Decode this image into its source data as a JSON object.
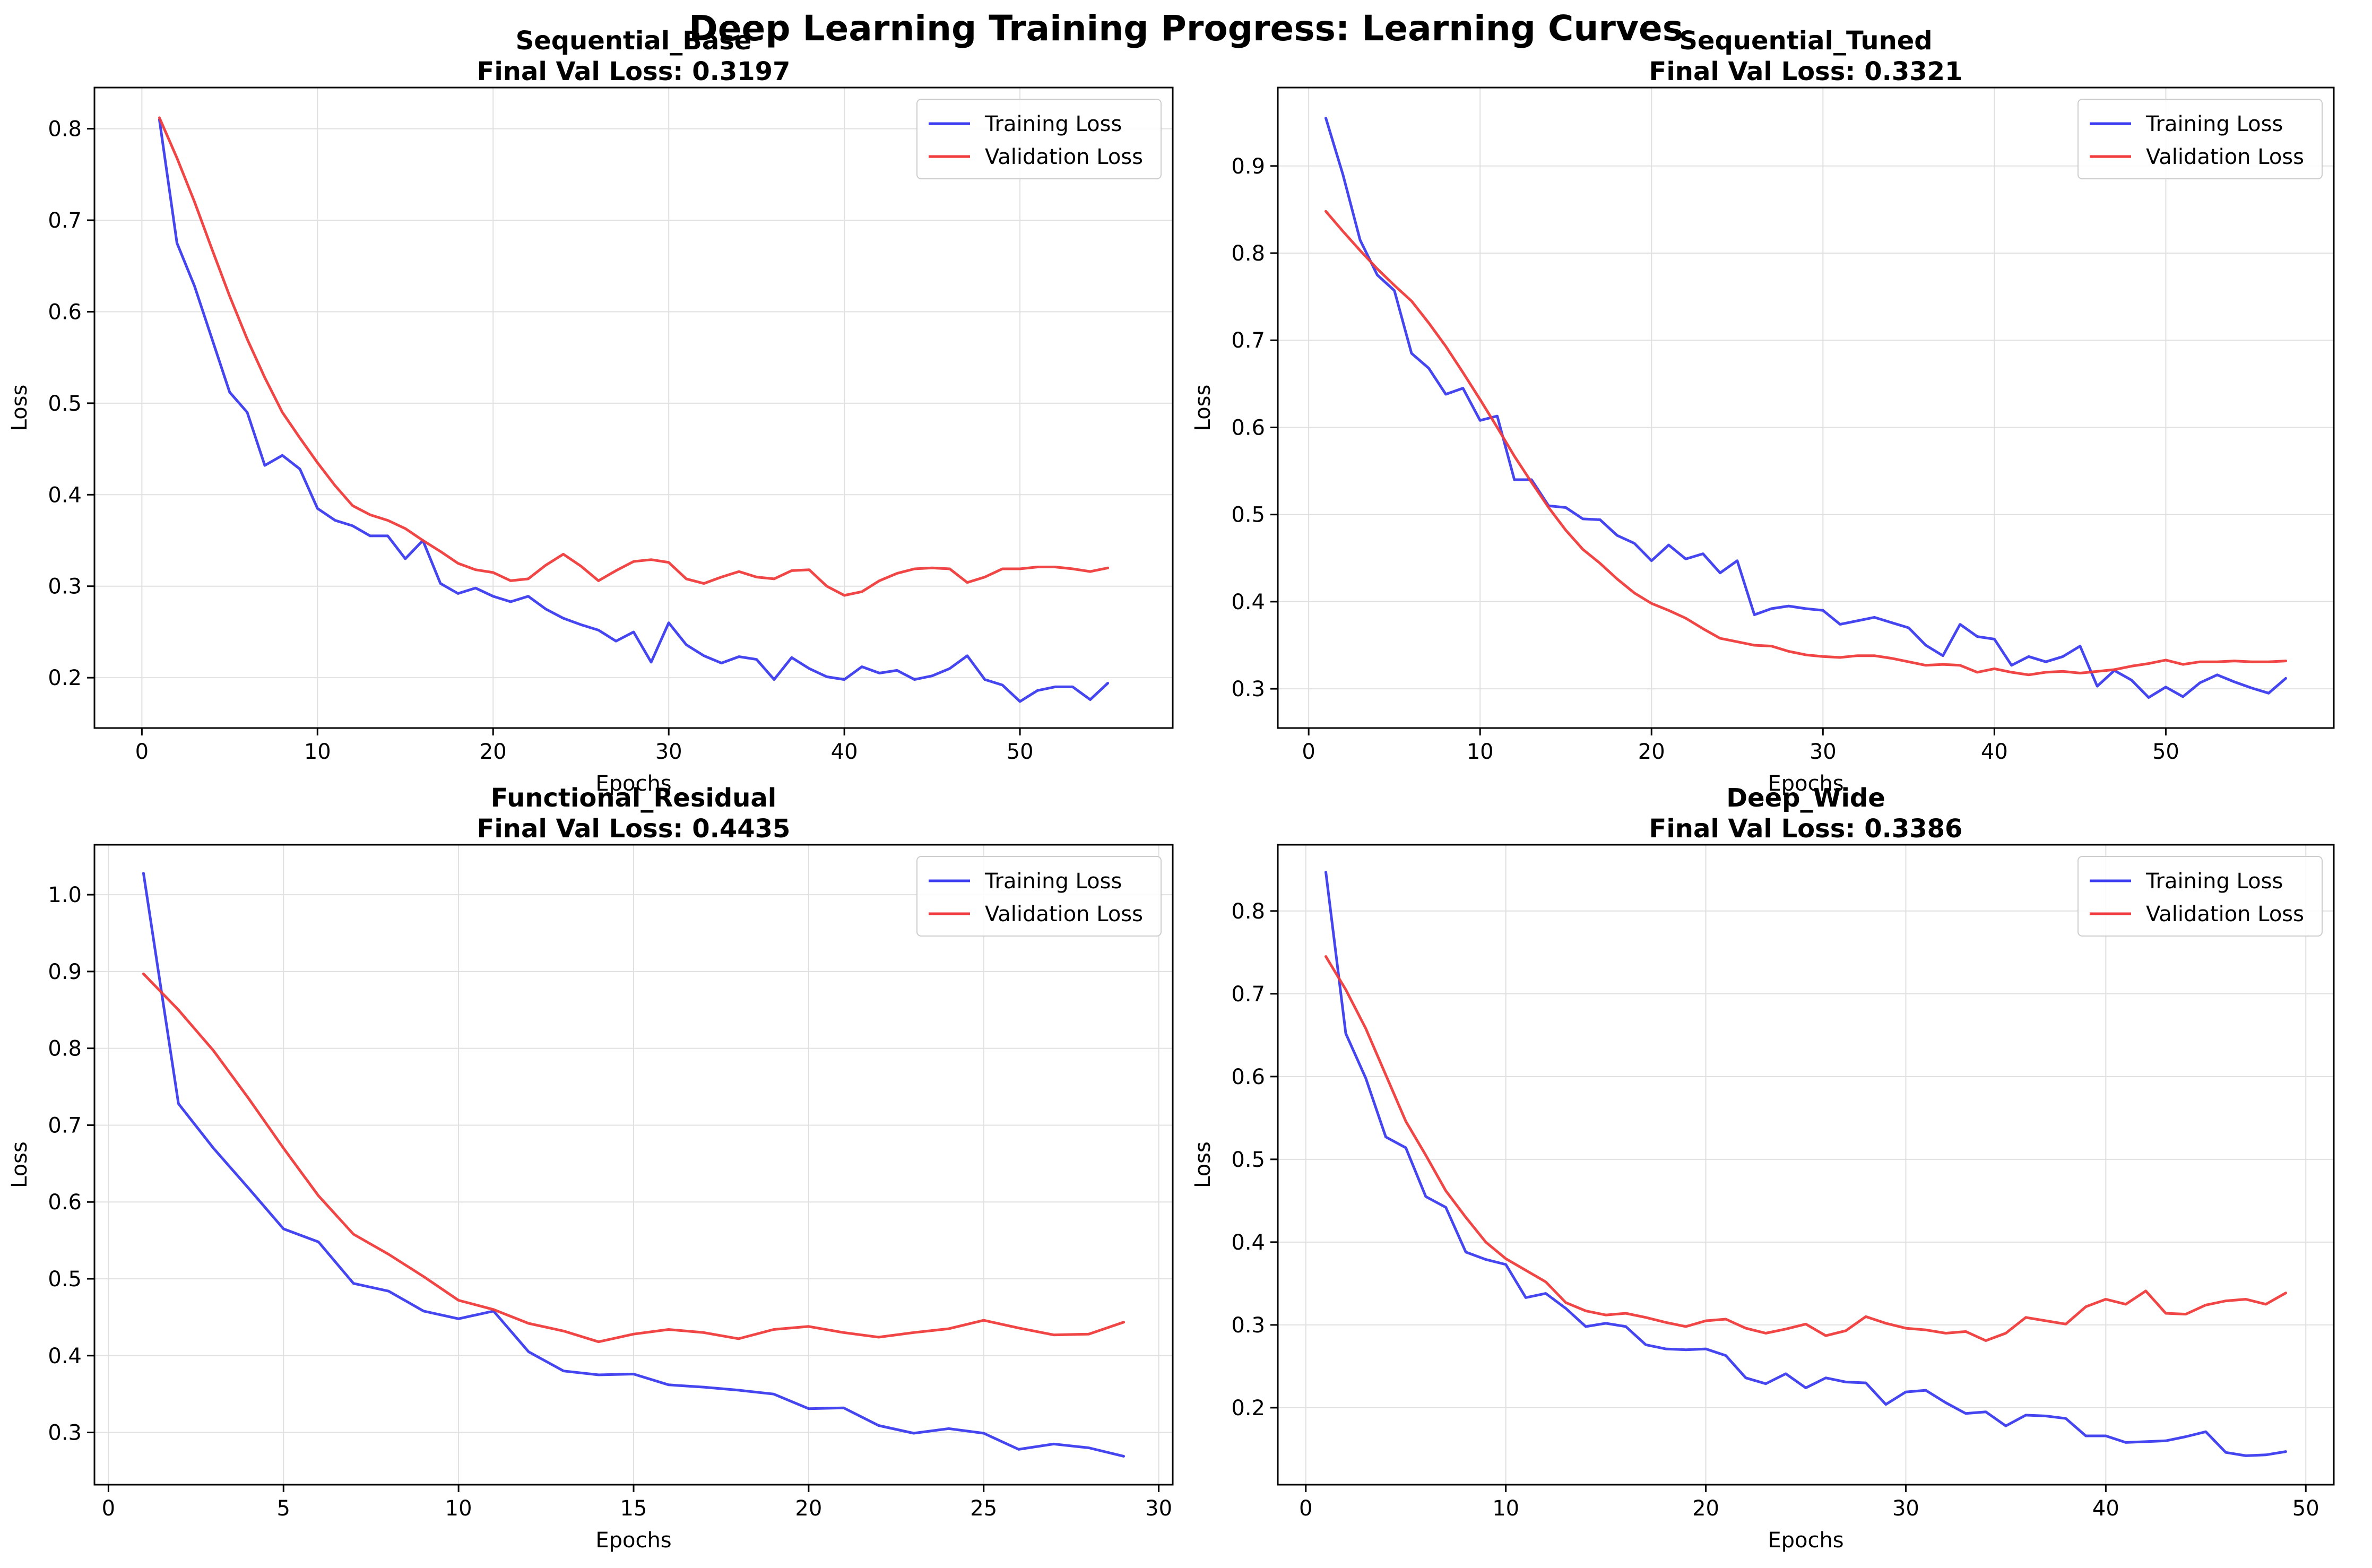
{
  "figure_title": "Deep Learning Training Progress: Learning Curves",
  "colors": {
    "training": "#3c3cf0",
    "validation": "#f03c3c",
    "grid": "#e0e0e0",
    "axis": "#000000"
  },
  "chart_data": [
    {
      "type": "line",
      "model": "Sequential_Base",
      "title": "Sequential_Base",
      "subtitle": "Final Val Loss: 0.3197",
      "xlabel": "Epochs",
      "ylabel": "Loss",
      "xlim": [
        -2.7,
        58.7
      ],
      "ylim": [
        0.145,
        0.845
      ],
      "xticks": [
        0,
        10,
        20,
        30,
        40,
        50
      ],
      "yticks": [
        0.2,
        0.3,
        0.4,
        0.5,
        0.6,
        0.7,
        0.8
      ],
      "ytick_labels": [
        "0.2",
        "0.3",
        "0.4",
        "0.5",
        "0.6",
        "0.7",
        "0.8"
      ],
      "grid": true,
      "legend_position": "top-right",
      "series": [
        {
          "name": "Training Loss",
          "color": "#3c3cf0",
          "x": [
            1,
            2,
            3,
            4,
            5,
            6,
            7,
            8,
            9,
            10,
            11,
            12,
            13,
            14,
            15,
            16,
            17,
            18,
            19,
            20,
            21,
            22,
            23,
            24,
            25,
            26,
            27,
            28,
            29,
            30,
            31,
            32,
            33,
            34,
            35,
            36,
            37,
            38,
            39,
            40,
            41,
            42,
            43,
            44,
            45,
            46,
            47,
            48,
            49,
            50,
            51,
            52,
            53,
            54,
            55
          ],
          "y": [
            0.81,
            0.675,
            0.628,
            0.57,
            0.512,
            0.49,
            0.432,
            0.443,
            0.428,
            0.385,
            0.372,
            0.366,
            0.355,
            0.355,
            0.33,
            0.35,
            0.303,
            0.292,
            0.298,
            0.289,
            0.283,
            0.289,
            0.275,
            0.265,
            0.258,
            0.252,
            0.24,
            0.25,
            0.217,
            0.26,
            0.236,
            0.224,
            0.216,
            0.223,
            0.22,
            0.198,
            0.222,
            0.21,
            0.201,
            0.198,
            0.212,
            0.205,
            0.208,
            0.198,
            0.202,
            0.21,
            0.224,
            0.198,
            0.192,
            0.174,
            0.186,
            0.19,
            0.19,
            0.176,
            0.194
          ]
        },
        {
          "name": "Validation Loss",
          "color": "#f03c3c",
          "x": [
            1,
            2,
            3,
            4,
            5,
            6,
            7,
            8,
            9,
            10,
            11,
            12,
            13,
            14,
            15,
            16,
            17,
            18,
            19,
            20,
            21,
            22,
            23,
            24,
            25,
            26,
            27,
            28,
            29,
            30,
            31,
            32,
            33,
            34,
            35,
            36,
            37,
            38,
            39,
            40,
            41,
            42,
            43,
            44,
            45,
            46,
            47,
            48,
            49,
            50,
            51,
            52,
            53,
            54,
            55
          ],
          "y": [
            0.812,
            0.768,
            0.72,
            0.668,
            0.617,
            0.57,
            0.528,
            0.49,
            0.462,
            0.435,
            0.41,
            0.388,
            0.378,
            0.372,
            0.363,
            0.35,
            0.338,
            0.325,
            0.318,
            0.315,
            0.306,
            0.308,
            0.323,
            0.335,
            0.322,
            0.306,
            0.317,
            0.327,
            0.329,
            0.326,
            0.308,
            0.303,
            0.31,
            0.316,
            0.31,
            0.308,
            0.317,
            0.318,
            0.3,
            0.29,
            0.294,
            0.306,
            0.314,
            0.319,
            0.32,
            0.319,
            0.304,
            0.31,
            0.319,
            0.319,
            0.321,
            0.321,
            0.319,
            0.316,
            0.32
          ]
        }
      ]
    },
    {
      "type": "line",
      "model": "Sequential_Tuned",
      "title": "Sequential_Tuned",
      "subtitle": "Final Val Loss: 0.3321",
      "xlabel": "Epochs",
      "ylabel": "Loss",
      "xlim": [
        -1.8,
        59.8
      ],
      "ylim": [
        0.255,
        0.99
      ],
      "xticks": [
        0,
        10,
        20,
        30,
        40,
        50
      ],
      "yticks": [
        0.3,
        0.4,
        0.5,
        0.6,
        0.7,
        0.8,
        0.9
      ],
      "ytick_labels": [
        "0.3",
        "0.4",
        "0.5",
        "0.6",
        "0.7",
        "0.8",
        "0.9"
      ],
      "grid": true,
      "legend_position": "top-right",
      "series": [
        {
          "name": "Training Loss",
          "color": "#3c3cf0",
          "x": [
            1,
            2,
            3,
            4,
            5,
            6,
            7,
            8,
            9,
            10,
            11,
            12,
            13,
            14,
            15,
            16,
            17,
            18,
            19,
            20,
            21,
            22,
            23,
            24,
            25,
            26,
            27,
            28,
            29,
            30,
            31,
            32,
            33,
            34,
            35,
            36,
            37,
            38,
            39,
            40,
            41,
            42,
            43,
            44,
            45,
            46,
            47,
            48,
            49,
            50,
            51,
            52,
            53,
            54,
            55,
            56,
            57
          ],
          "y": [
            0.955,
            0.89,
            0.815,
            0.775,
            0.757,
            0.685,
            0.668,
            0.638,
            0.645,
            0.608,
            0.613,
            0.54,
            0.54,
            0.51,
            0.508,
            0.495,
            0.494,
            0.476,
            0.467,
            0.447,
            0.465,
            0.449,
            0.455,
            0.433,
            0.447,
            0.385,
            0.392,
            0.395,
            0.392,
            0.39,
            0.374,
            0.378,
            0.382,
            0.376,
            0.37,
            0.35,
            0.338,
            0.374,
            0.36,
            0.357,
            0.327,
            0.337,
            0.331,
            0.337,
            0.349,
            0.303,
            0.321,
            0.31,
            0.29,
            0.302,
            0.291,
            0.307,
            0.316,
            0.308,
            0.301,
            0.295,
            0.312
          ]
        },
        {
          "name": "Validation Loss",
          "color": "#f03c3c",
          "x": [
            1,
            2,
            3,
            4,
            5,
            6,
            7,
            8,
            9,
            10,
            11,
            12,
            13,
            14,
            15,
            16,
            17,
            18,
            19,
            20,
            21,
            22,
            23,
            24,
            25,
            26,
            27,
            28,
            29,
            30,
            31,
            32,
            33,
            34,
            35,
            36,
            37,
            38,
            39,
            40,
            41,
            42,
            43,
            44,
            45,
            46,
            47,
            48,
            49,
            50,
            51,
            52,
            53,
            54,
            55,
            56,
            57
          ],
          "y": [
            0.848,
            0.825,
            0.803,
            0.782,
            0.763,
            0.745,
            0.72,
            0.693,
            0.663,
            0.632,
            0.6,
            0.567,
            0.537,
            0.508,
            0.482,
            0.46,
            0.444,
            0.426,
            0.41,
            0.398,
            0.39,
            0.381,
            0.369,
            0.358,
            0.354,
            0.35,
            0.349,
            0.343,
            0.339,
            0.337,
            0.336,
            0.338,
            0.338,
            0.335,
            0.331,
            0.327,
            0.328,
            0.327,
            0.319,
            0.323,
            0.319,
            0.316,
            0.319,
            0.32,
            0.318,
            0.32,
            0.322,
            0.326,
            0.329,
            0.333,
            0.328,
            0.331,
            0.331,
            0.332,
            0.331,
            0.331,
            0.332
          ]
        }
      ]
    },
    {
      "type": "line",
      "model": "Functional_Residual",
      "title": "Functional_Residual",
      "subtitle": "Final Val Loss: 0.4435",
      "xlabel": "Epochs",
      "ylabel": "Loss",
      "xlim": [
        -0.4,
        30.4
      ],
      "ylim": [
        0.232,
        1.065
      ],
      "xticks": [
        0,
        5,
        10,
        15,
        20,
        25,
        30
      ],
      "yticks": [
        0.3,
        0.4,
        0.5,
        0.6,
        0.7,
        0.8,
        0.9,
        1.0
      ],
      "ytick_labels": [
        "0.3",
        "0.4",
        "0.5",
        "0.6",
        "0.7",
        "0.8",
        "0.9",
        "1.0"
      ],
      "grid": true,
      "legend_position": "top-right",
      "series": [
        {
          "name": "Training Loss",
          "color": "#3c3cf0",
          "x": [
            1,
            2,
            3,
            4,
            5,
            6,
            7,
            8,
            9,
            10,
            11,
            12,
            13,
            14,
            15,
            16,
            17,
            18,
            19,
            20,
            21,
            22,
            23,
            24,
            25,
            26,
            27,
            28,
            29
          ],
          "y": [
            1.028,
            0.728,
            0.67,
            0.618,
            0.565,
            0.548,
            0.494,
            0.484,
            0.458,
            0.448,
            0.458,
            0.405,
            0.38,
            0.375,
            0.376,
            0.362,
            0.359,
            0.355,
            0.35,
            0.331,
            0.332,
            0.309,
            0.299,
            0.305,
            0.299,
            0.278,
            0.285,
            0.28,
            0.269
          ]
        },
        {
          "name": "Validation Loss",
          "color": "#f03c3c",
          "x": [
            1,
            2,
            3,
            4,
            5,
            6,
            7,
            8,
            9,
            10,
            11,
            12,
            13,
            14,
            15,
            16,
            17,
            18,
            19,
            20,
            21,
            22,
            23,
            24,
            25,
            26,
            27,
            28,
            29
          ],
          "y": [
            0.897,
            0.85,
            0.797,
            0.735,
            0.67,
            0.608,
            0.558,
            0.532,
            0.503,
            0.472,
            0.46,
            0.442,
            0.432,
            0.418,
            0.428,
            0.434,
            0.43,
            0.422,
            0.434,
            0.438,
            0.43,
            0.424,
            0.43,
            0.435,
            0.446,
            0.436,
            0.427,
            0.428,
            0.4435
          ]
        }
      ]
    },
    {
      "type": "line",
      "model": "Deep_Wide",
      "title": "Deep_Wide",
      "subtitle": "Final Val Loss: 0.3386",
      "xlabel": "Epochs",
      "ylabel": "Loss",
      "xlim": [
        -1.4,
        51.4
      ],
      "ylim": [
        0.107,
        0.88
      ],
      "xticks": [
        0,
        10,
        20,
        30,
        40,
        50
      ],
      "yticks": [
        0.2,
        0.3,
        0.4,
        0.5,
        0.6,
        0.7,
        0.8
      ],
      "ytick_labels": [
        "0.2",
        "0.3",
        "0.4",
        "0.5",
        "0.6",
        "0.7",
        "0.8"
      ],
      "grid": true,
      "legend_position": "top-right",
      "series": [
        {
          "name": "Training Loss",
          "color": "#3c3cf0",
          "x": [
            1,
            2,
            3,
            4,
            5,
            6,
            7,
            8,
            9,
            10,
            11,
            12,
            13,
            14,
            15,
            16,
            17,
            18,
            19,
            20,
            21,
            22,
            23,
            24,
            25,
            26,
            27,
            28,
            29,
            30,
            31,
            32,
            33,
            34,
            35,
            36,
            37,
            38,
            39,
            40,
            41,
            42,
            43,
            44,
            45,
            46,
            47,
            48,
            49
          ],
          "y": [
            0.847,
            0.652,
            0.598,
            0.527,
            0.514,
            0.455,
            0.442,
            0.388,
            0.379,
            0.373,
            0.333,
            0.338,
            0.32,
            0.298,
            0.302,
            0.298,
            0.276,
            0.271,
            0.27,
            0.271,
            0.263,
            0.236,
            0.229,
            0.241,
            0.224,
            0.236,
            0.231,
            0.23,
            0.204,
            0.219,
            0.221,
            0.206,
            0.193,
            0.195,
            0.178,
            0.191,
            0.19,
            0.187,
            0.166,
            0.166,
            0.158,
            0.159,
            0.16,
            0.165,
            0.171,
            0.146,
            0.142,
            0.143,
            0.147
          ]
        },
        {
          "name": "Validation Loss",
          "color": "#f03c3c",
          "x": [
            1,
            2,
            3,
            4,
            5,
            6,
            7,
            8,
            9,
            10,
            11,
            12,
            13,
            14,
            15,
            16,
            17,
            18,
            19,
            20,
            21,
            22,
            23,
            24,
            25,
            26,
            27,
            28,
            29,
            30,
            31,
            32,
            33,
            34,
            35,
            36,
            37,
            38,
            39,
            40,
            41,
            42,
            43,
            44,
            45,
            46,
            47,
            48,
            49
          ],
          "y": [
            0.745,
            0.705,
            0.658,
            0.602,
            0.546,
            0.505,
            0.462,
            0.43,
            0.4,
            0.38,
            0.366,
            0.352,
            0.327,
            0.317,
            0.312,
            0.314,
            0.309,
            0.303,
            0.298,
            0.305,
            0.307,
            0.296,
            0.29,
            0.295,
            0.301,
            0.287,
            0.293,
            0.31,
            0.302,
            0.296,
            0.294,
            0.29,
            0.292,
            0.281,
            0.29,
            0.309,
            0.305,
            0.301,
            0.322,
            0.331,
            0.325,
            0.341,
            0.314,
            0.313,
            0.324,
            0.329,
            0.331,
            0.325,
            0.3386
          ]
        }
      ]
    }
  ]
}
